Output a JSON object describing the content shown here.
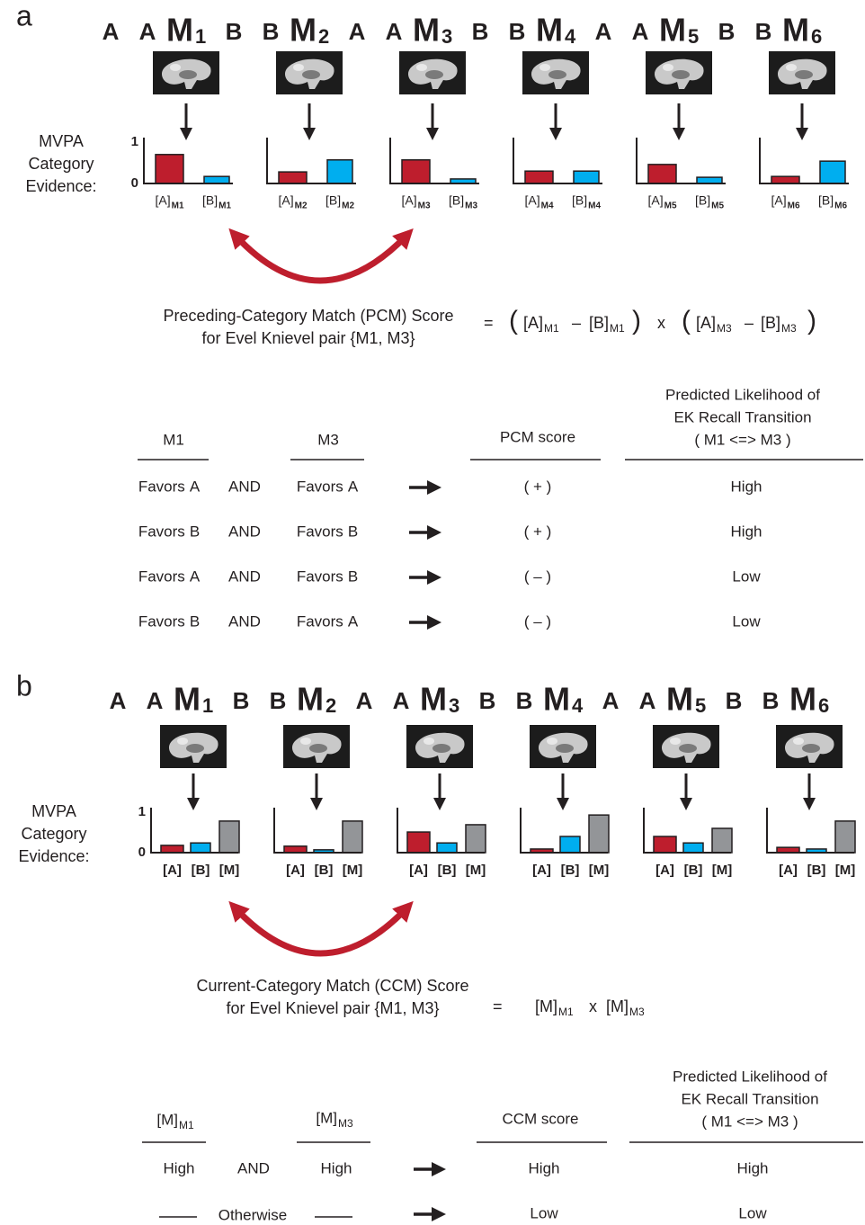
{
  "panel_a": {
    "label": "a",
    "sequence": [
      {
        "text": "A"
      },
      {
        "text": "A"
      },
      {
        "text": "M",
        "sub": "1"
      },
      {
        "text": "B"
      },
      {
        "text": "B"
      },
      {
        "text": "M",
        "sub": "2"
      },
      {
        "text": "A"
      },
      {
        "text": "A"
      },
      {
        "text": "M",
        "sub": "3"
      },
      {
        "text": "B"
      },
      {
        "text": "B"
      },
      {
        "text": "M",
        "sub": "4"
      },
      {
        "text": "A"
      },
      {
        "text": "A"
      },
      {
        "text": "M",
        "sub": "5"
      },
      {
        "text": "B"
      },
      {
        "text": "B"
      },
      {
        "text": "M",
        "sub": "6"
      }
    ],
    "evidence_label": [
      "MVPA",
      "Category",
      "Evidence:"
    ],
    "ylim": [
      0,
      1
    ],
    "yticks": [
      0,
      1
    ],
    "colors": {
      "A": "#be1e2d",
      "B": "#00aeef"
    },
    "text_colors": {
      "A": "#be1e2d",
      "B": "#1ba1e2"
    },
    "charts": [
      {
        "bars": [
          {
            "label": "[A]",
            "sub": "M1",
            "category": "A",
            "value": 0.7
          },
          {
            "label": "[B]",
            "sub": "M1",
            "category": "B",
            "value": 0.17
          }
        ]
      },
      {
        "bars": [
          {
            "label": "[A]",
            "sub": "M2",
            "category": "A",
            "value": 0.28
          },
          {
            "label": "[B]",
            "sub": "M2",
            "category": "B",
            "value": 0.57
          }
        ]
      },
      {
        "bars": [
          {
            "label": "[A]",
            "sub": "M3",
            "category": "A",
            "value": 0.57
          },
          {
            "label": "[B]",
            "sub": "M3",
            "category": "B",
            "value": 0.11
          }
        ]
      },
      {
        "bars": [
          {
            "label": "[A]",
            "sub": "M4",
            "category": "A",
            "value": 0.3
          },
          {
            "label": "[B]",
            "sub": "M4",
            "category": "B",
            "value": 0.3
          }
        ]
      },
      {
        "bars": [
          {
            "label": "[A]",
            "sub": "M5",
            "category": "A",
            "value": 0.46
          },
          {
            "label": "[B]",
            "sub": "M5",
            "category": "B",
            "value": 0.15
          }
        ]
      },
      {
        "bars": [
          {
            "label": "[A]",
            "sub": "M6",
            "category": "A",
            "value": 0.17
          },
          {
            "label": "[B]",
            "sub": "M6",
            "category": "B",
            "value": 0.54
          }
        ]
      }
    ],
    "score_title": [
      "Preceding-Category Match (PCM) Score",
      "for Evel Knievel pair {M1, M3}"
    ],
    "formula": [
      {
        "text": "="
      },
      {
        "text": "("
      },
      {
        "text": "[A]",
        "sub": "M1",
        "category": "A"
      },
      {
        "text": "–"
      },
      {
        "text": "[B]",
        "sub": "M1",
        "category": "B"
      },
      {
        "text": ")"
      },
      {
        "text": "x"
      },
      {
        "text": "("
      },
      {
        "text": "[A]",
        "sub": "M3",
        "category": "A"
      },
      {
        "text": "–"
      },
      {
        "text": "[B]",
        "sub": "M3",
        "category": "B"
      },
      {
        "text": ")"
      }
    ],
    "table": {
      "headers": {
        "m1": "M1",
        "m3": "M3",
        "score": "PCM score",
        "likelihood": [
          "Predicted Likelihood of",
          "EK Recall Transition",
          "( M1 <=> M3 )"
        ]
      },
      "rows": [
        {
          "m1": {
            "text": "Favors",
            "category": "A"
          },
          "op": "AND",
          "m3": {
            "text": "Favors",
            "category": "A"
          },
          "score": "( + )",
          "likelihood": "High"
        },
        {
          "m1": {
            "text": "Favors",
            "category": "B"
          },
          "op": "AND",
          "m3": {
            "text": "Favors",
            "category": "B"
          },
          "score": "( + )",
          "likelihood": "High"
        },
        {
          "m1": {
            "text": "Favors",
            "category": "A"
          },
          "op": "AND",
          "m3": {
            "text": "Favors",
            "category": "B"
          },
          "score": "( – )",
          "likelihood": "Low"
        },
        {
          "m1": {
            "text": "Favors",
            "category": "B"
          },
          "op": "AND",
          "m3": {
            "text": "Favors",
            "category": "A"
          },
          "score": "( – )",
          "likelihood": "Low"
        }
      ]
    }
  },
  "panel_b": {
    "label": "b",
    "sequence": [
      {
        "text": "A"
      },
      {
        "text": "A"
      },
      {
        "text": "M",
        "sub": "1"
      },
      {
        "text": "B"
      },
      {
        "text": "B"
      },
      {
        "text": "M",
        "sub": "2"
      },
      {
        "text": "A"
      },
      {
        "text": "A"
      },
      {
        "text": "M",
        "sub": "3"
      },
      {
        "text": "B"
      },
      {
        "text": "B"
      },
      {
        "text": "M",
        "sub": "4"
      },
      {
        "text": "A"
      },
      {
        "text": "A"
      },
      {
        "text": "M",
        "sub": "5"
      },
      {
        "text": "B"
      },
      {
        "text": "B"
      },
      {
        "text": "M",
        "sub": "6"
      }
    ],
    "evidence_label": [
      "MVPA",
      "Category",
      "Evidence:"
    ],
    "ylim": [
      0,
      1
    ],
    "yticks": [
      0,
      1
    ],
    "colors": {
      "A": "#be1e2d",
      "B": "#00aeef",
      "M": "#939598"
    },
    "text_colors": {
      "A": "#be1e2d",
      "B": "#1ba1e2"
    },
    "charts": [
      {
        "bars": [
          {
            "label": "[A]",
            "category": "A",
            "value": 0.18
          },
          {
            "label": "[B]",
            "category": "B",
            "value": 0.24
          },
          {
            "label": "[M]",
            "category": "M",
            "value": 0.78
          }
        ]
      },
      {
        "bars": [
          {
            "label": "[A]",
            "category": "A",
            "value": 0.16
          },
          {
            "label": "[B]",
            "category": "B",
            "value": 0.07
          },
          {
            "label": "[M]",
            "category": "M",
            "value": 0.78
          }
        ]
      },
      {
        "bars": [
          {
            "label": "[A]",
            "category": "A",
            "value": 0.51
          },
          {
            "label": "[B]",
            "category": "B",
            "value": 0.24
          },
          {
            "label": "[M]",
            "category": "M",
            "value": 0.69
          }
        ]
      },
      {
        "bars": [
          {
            "label": "[A]",
            "category": "A",
            "value": 0.09
          },
          {
            "label": "[B]",
            "category": "B",
            "value": 0.4
          },
          {
            "label": "[M]",
            "category": "M",
            "value": 0.93
          }
        ]
      },
      {
        "bars": [
          {
            "label": "[A]",
            "category": "A",
            "value": 0.4
          },
          {
            "label": "[B]",
            "category": "B",
            "value": 0.24
          },
          {
            "label": "[M]",
            "category": "M",
            "value": 0.6
          }
        ]
      },
      {
        "bars": [
          {
            "label": "[A]",
            "category": "A",
            "value": 0.13
          },
          {
            "label": "[B]",
            "category": "B",
            "value": 0.09
          },
          {
            "label": "[M]",
            "category": "M",
            "value": 0.78
          }
        ]
      }
    ],
    "score_title": [
      "Current-Category Match (CCM) Score",
      "for Evel Knievel pair {M1, M3}"
    ],
    "formula": [
      {
        "text": "="
      },
      {
        "text": "[M]",
        "sub": "M1"
      },
      {
        "text": "x"
      },
      {
        "text": "[M]",
        "sub": "M3"
      }
    ],
    "table": {
      "headers": {
        "m1": {
          "text": "[M]",
          "sub": "M1"
        },
        "m3": {
          "text": "[M]",
          "sub": "M3"
        },
        "score": "CCM score",
        "likelihood": [
          "Predicted Likelihood of",
          "EK Recall Transition",
          "( M1 <=> M3 )"
        ]
      },
      "rows": [
        {
          "m1": "High",
          "op": "AND",
          "m3": "High",
          "score": "High",
          "likelihood": "High"
        },
        {
          "condition": "Otherwise",
          "score": "Low",
          "likelihood": "Low"
        }
      ]
    }
  }
}
